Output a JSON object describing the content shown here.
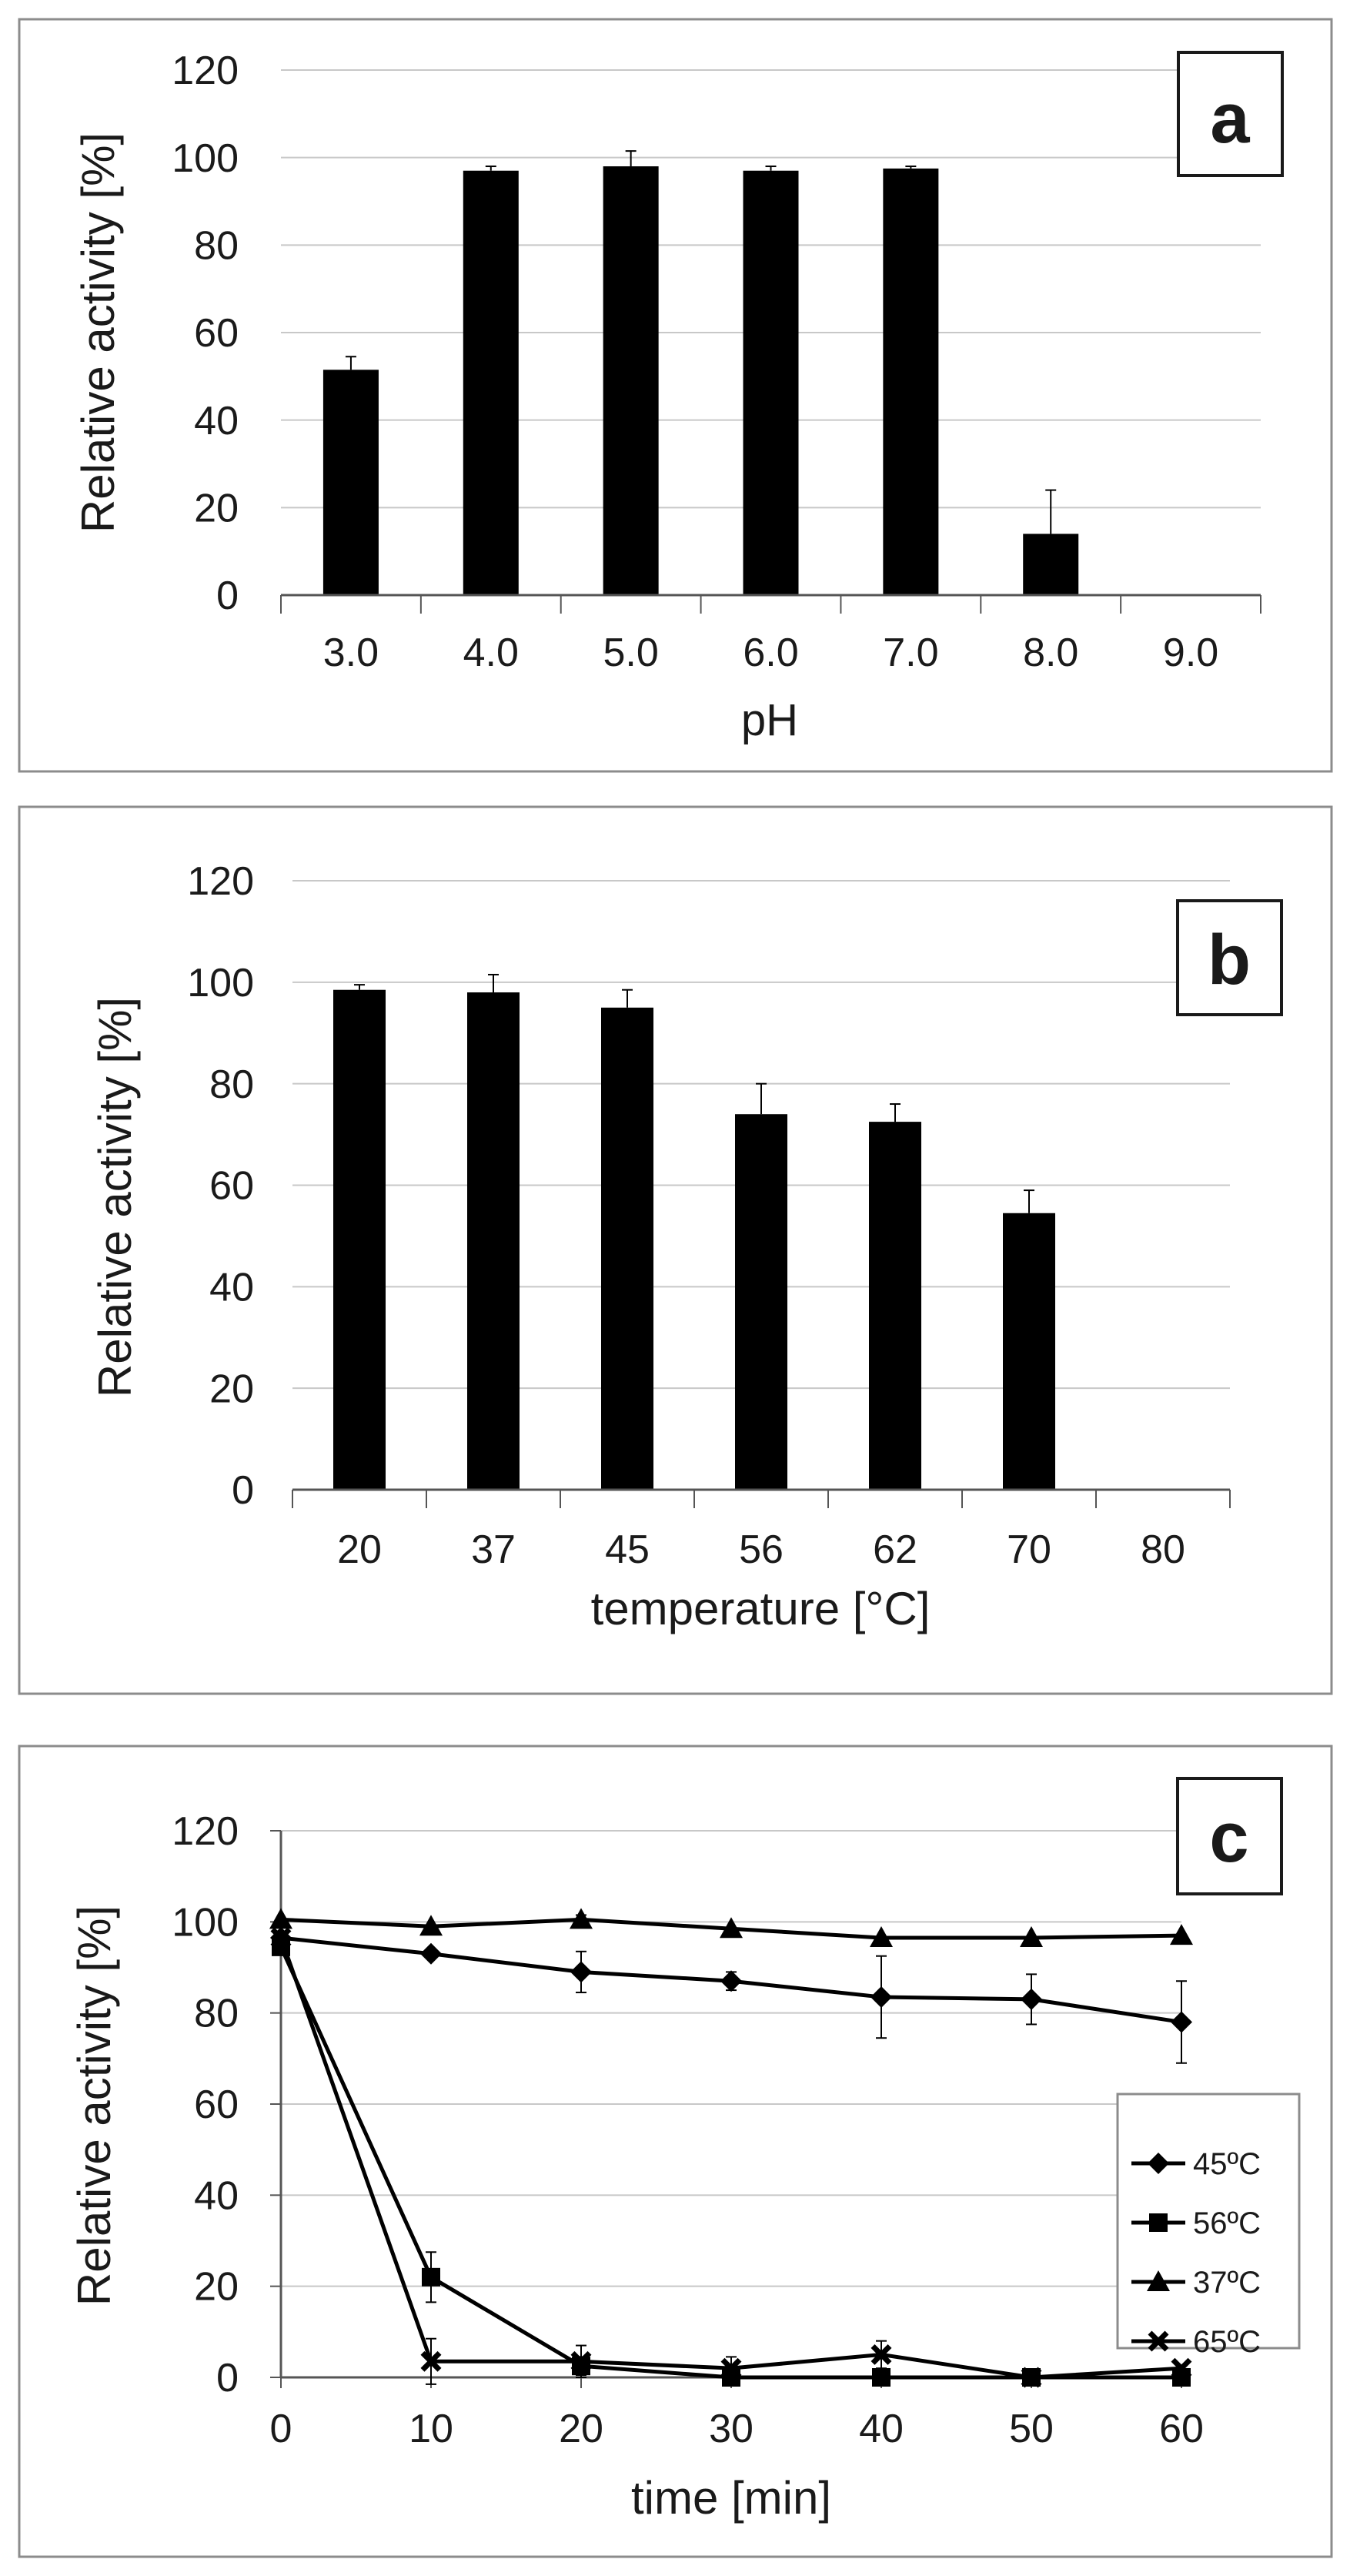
{
  "chart_data": [
    {
      "type": "bar",
      "panel_label": "a",
      "title": "",
      "categories": [
        "3.0",
        "4.0",
        "5.0",
        "6.0",
        "7.0",
        "8.0",
        "9.0"
      ],
      "values": [
        51.5,
        97,
        98,
        97,
        97.5,
        14,
        0
      ],
      "errors": [
        3,
        1,
        3.5,
        1,
        0.5,
        10,
        0
      ],
      "xlabel": "pH",
      "ylabel": "Relative activity [%]",
      "ylim": [
        0,
        120
      ],
      "yticks": [
        "0",
        "20",
        "40",
        "60",
        "80",
        "100",
        "120"
      ],
      "grid": true
    },
    {
      "type": "bar",
      "panel_label": "b",
      "title": "",
      "categories": [
        "20",
        "37",
        "45",
        "56",
        "62",
        "70",
        "80"
      ],
      "values": [
        98.5,
        98,
        95,
        74,
        72.5,
        54.5,
        0
      ],
      "errors": [
        1,
        3.5,
        3.5,
        6,
        3.5,
        4.5,
        0
      ],
      "xlabel": "temperature [°C]",
      "ylabel": "Relative activity [%]",
      "ylim": [
        0,
        120
      ],
      "yticks": [
        "0",
        "20",
        "40",
        "60",
        "80",
        "100",
        "120"
      ],
      "grid": true
    },
    {
      "type": "line",
      "panel_label": "c",
      "title": "",
      "x": [
        0,
        10,
        20,
        30,
        40,
        50,
        60
      ],
      "xticks": [
        "0",
        "10",
        "20",
        "30",
        "40",
        "50",
        "60"
      ],
      "xlabel": "time [min]",
      "ylabel": "Relative activity [%]",
      "xlim": [
        0,
        60
      ],
      "ylim": [
        0,
        120
      ],
      "yticks": [
        "0",
        "20",
        "40",
        "60",
        "80",
        "100",
        "120"
      ],
      "grid": true,
      "legend_position": "right",
      "series": [
        {
          "name": "45ºC",
          "marker": "diamond",
          "values": [
            96.5,
            93,
            89,
            87,
            83.5,
            83,
            78
          ],
          "errors": [
            0,
            0,
            4.5,
            2,
            9,
            5.5,
            9
          ]
        },
        {
          "name": "56ºC",
          "marker": "square",
          "values": [
            94.5,
            22,
            2.5,
            0,
            0,
            0,
            0
          ],
          "errors": [
            0,
            5.5,
            2,
            0,
            0,
            0,
            0
          ]
        },
        {
          "name": "37ºC",
          "marker": "triangle",
          "values": [
            100.5,
            99,
            100.5,
            98.5,
            96.5,
            96.5,
            97
          ],
          "errors": [
            0,
            0,
            1,
            0,
            0,
            0,
            0
          ]
        },
        {
          "name": "65ºC",
          "marker": "cross",
          "values": [
            96.5,
            3.5,
            3.5,
            2,
            5,
            0,
            2
          ],
          "errors": [
            0,
            5,
            3.5,
            2.5,
            3,
            0,
            0
          ]
        }
      ]
    }
  ]
}
